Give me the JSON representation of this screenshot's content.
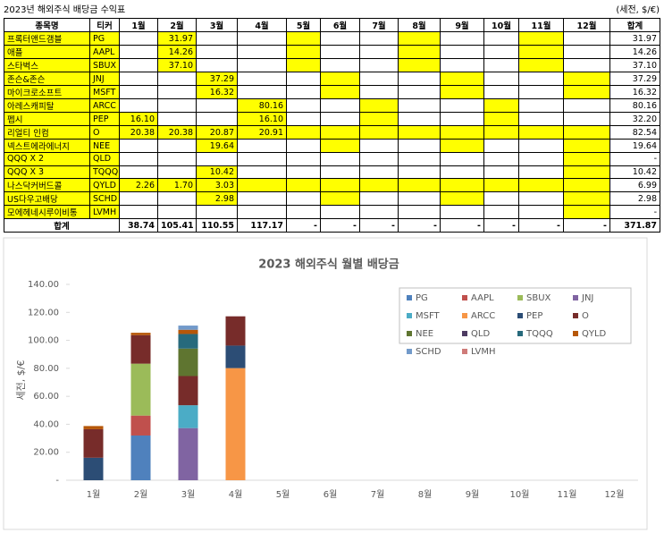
{
  "table": {
    "title": "2023년 해외주식 배당금 수익표",
    "unit": "(세전, $/€)",
    "header": [
      "종목명",
      "티커",
      "1월",
      "2월",
      "3월",
      "4월",
      "5월",
      "6월",
      "7월",
      "8월",
      "9월",
      "10월",
      "11월",
      "12월",
      "합계"
    ],
    "rows": [
      {
        "name": "프록터앤드갬블",
        "ticker": "PG",
        "months": [
          null,
          "31.97",
          null,
          null,
          null,
          null,
          null,
          null,
          null,
          null,
          null,
          null
        ],
        "total": "31.97",
        "highlight": [
          2,
          5,
          8,
          11
        ]
      },
      {
        "name": "애플",
        "ticker": "AAPL",
        "months": [
          null,
          "14.26",
          null,
          null,
          null,
          null,
          null,
          null,
          null,
          null,
          null,
          null
        ],
        "total": "14.26",
        "highlight": [
          2,
          5,
          8,
          11
        ]
      },
      {
        "name": "스타벅스",
        "ticker": "SBUX",
        "months": [
          null,
          "37.10",
          null,
          null,
          null,
          null,
          null,
          null,
          null,
          null,
          null,
          null
        ],
        "total": "37.10",
        "highlight": [
          2,
          5,
          8,
          11
        ]
      },
      {
        "name": "존슨&존슨",
        "ticker": "JNJ",
        "months": [
          null,
          null,
          "37.29",
          null,
          null,
          null,
          null,
          null,
          null,
          null,
          null,
          null
        ],
        "total": "37.29",
        "highlight": [
          3,
          6,
          9,
          12
        ]
      },
      {
        "name": "마이크로소프트",
        "ticker": "MSFT",
        "months": [
          null,
          null,
          "16.32",
          null,
          null,
          null,
          null,
          null,
          null,
          null,
          null,
          null
        ],
        "total": "16.32",
        "highlight": [
          3,
          6,
          9,
          12
        ]
      },
      {
        "name": "아레스캐피탈",
        "ticker": "ARCC",
        "months": [
          null,
          null,
          null,
          "80.16",
          null,
          null,
          null,
          null,
          null,
          null,
          null,
          null
        ],
        "total": "80.16",
        "highlight": [
          4,
          7,
          10
        ]
      },
      {
        "name": "펩시",
        "ticker": "PEP",
        "months": [
          "16.10",
          null,
          null,
          "16.10",
          null,
          null,
          null,
          null,
          null,
          null,
          null,
          null
        ],
        "total": "32.20",
        "highlight": [
          1,
          4,
          7,
          10
        ]
      },
      {
        "name": "리얼티 인컴",
        "ticker": "O",
        "months": [
          "20.38",
          "20.38",
          "20.87",
          "20.91",
          null,
          null,
          null,
          null,
          null,
          null,
          null,
          null
        ],
        "total": "82.54",
        "highlight": [
          1,
          2,
          3,
          4,
          5,
          6,
          7,
          8,
          9,
          10,
          11,
          12
        ]
      },
      {
        "name": "넥스트에라에너지",
        "ticker": "NEE",
        "months": [
          null,
          null,
          "19.64",
          null,
          null,
          null,
          null,
          null,
          null,
          null,
          null,
          null
        ],
        "total": "19.64",
        "highlight": [
          3,
          6,
          9,
          12
        ]
      },
      {
        "name": "QQQ X 2",
        "ticker": "QLD",
        "months": [
          null,
          null,
          null,
          null,
          null,
          null,
          null,
          null,
          null,
          null,
          null,
          null
        ],
        "total": "-",
        "highlight": [
          12
        ]
      },
      {
        "name": "QQQ X 3",
        "ticker": "TQQQ",
        "months": [
          null,
          null,
          "10.42",
          null,
          null,
          null,
          null,
          null,
          null,
          null,
          null,
          null
        ],
        "total": "10.42",
        "highlight": [
          3,
          12
        ]
      },
      {
        "name": "나스닥커버드콜",
        "ticker": "QYLD",
        "months": [
          "2.26",
          "1.70",
          "3.03",
          null,
          null,
          null,
          null,
          null,
          null,
          null,
          null,
          null
        ],
        "total": "6.99",
        "highlight": [
          1,
          2,
          3,
          4,
          5,
          6,
          7,
          8,
          9,
          10,
          11,
          12
        ]
      },
      {
        "name": "US다우고배당",
        "ticker": "SCHD",
        "months": [
          null,
          null,
          "2.98",
          null,
          null,
          null,
          null,
          null,
          null,
          null,
          null,
          null
        ],
        "total": "2.98",
        "highlight": [
          3,
          6,
          9,
          12
        ]
      },
      {
        "name": "모에헤네시루이비통",
        "ticker": "LVMH",
        "months": [
          null,
          null,
          null,
          null,
          null,
          null,
          null,
          null,
          null,
          null,
          null,
          null
        ],
        "total": "-",
        "highlight": [
          12
        ]
      }
    ],
    "total_row": {
      "label": "합계",
      "months": [
        "38.74",
        "105.41",
        "110.55",
        "117.17",
        "-",
        "-",
        "-",
        "-",
        "-",
        "-",
        "-",
        "-"
      ],
      "total": "371.87"
    }
  },
  "chart_data": {
    "type": "stacked_bar",
    "title": "2023 해외주식 월별 배당금",
    "ylabel": "세전, $/€",
    "categories": [
      "1월",
      "2월",
      "3월",
      "4월",
      "5월",
      "6월",
      "7월",
      "8월",
      "9월",
      "10월",
      "11월",
      "12월"
    ],
    "ylim": [
      0,
      140
    ],
    "yticks": [
      {
        "value": 0,
        "label": "-"
      },
      {
        "value": 20,
        "label": "20.00"
      },
      {
        "value": 40,
        "label": "40.00"
      },
      {
        "value": 60,
        "label": "60.00"
      },
      {
        "value": 80,
        "label": "80.00"
      },
      {
        "value": 100,
        "label": "100.00"
      },
      {
        "value": 120,
        "label": "120.00"
      },
      {
        "value": 140,
        "label": "140.00"
      }
    ],
    "grid": false,
    "legend": "top-right",
    "series": [
      {
        "name": "PG",
        "color": "#4f81bd",
        "values": [
          null,
          31.97,
          null,
          null,
          null,
          null,
          null,
          null,
          null,
          null,
          null,
          null
        ]
      },
      {
        "name": "AAPL",
        "color": "#c0504d",
        "values": [
          null,
          14.26,
          null,
          null,
          null,
          null,
          null,
          null,
          null,
          null,
          null,
          null
        ]
      },
      {
        "name": "SBUX",
        "color": "#9bbb59",
        "values": [
          null,
          37.1,
          null,
          null,
          null,
          null,
          null,
          null,
          null,
          null,
          null,
          null
        ]
      },
      {
        "name": "JNJ",
        "color": "#8064a2",
        "values": [
          null,
          null,
          37.29,
          null,
          null,
          null,
          null,
          null,
          null,
          null,
          null,
          null
        ]
      },
      {
        "name": "MSFT",
        "color": "#4bacc6",
        "values": [
          null,
          null,
          16.32,
          null,
          null,
          null,
          null,
          null,
          null,
          null,
          null,
          null
        ]
      },
      {
        "name": "ARCC",
        "color": "#f79646",
        "values": [
          null,
          null,
          null,
          80.16,
          null,
          null,
          null,
          null,
          null,
          null,
          null,
          null
        ]
      },
      {
        "name": "PEP",
        "color": "#2c4d75",
        "values": [
          16.1,
          null,
          null,
          16.1,
          null,
          null,
          null,
          null,
          null,
          null,
          null,
          null
        ]
      },
      {
        "name": "O",
        "color": "#772c2a",
        "values": [
          20.38,
          20.38,
          20.87,
          20.91,
          null,
          null,
          null,
          null,
          null,
          null,
          null,
          null
        ]
      },
      {
        "name": "NEE",
        "color": "#5f7530",
        "values": [
          null,
          null,
          19.64,
          null,
          null,
          null,
          null,
          null,
          null,
          null,
          null,
          null
        ]
      },
      {
        "name": "QLD",
        "color": "#4d3b62",
        "values": [
          null,
          null,
          null,
          null,
          null,
          null,
          null,
          null,
          null,
          null,
          null,
          null
        ]
      },
      {
        "name": "TQQQ",
        "color": "#276a7c",
        "values": [
          null,
          null,
          10.42,
          null,
          null,
          null,
          null,
          null,
          null,
          null,
          null,
          null
        ]
      },
      {
        "name": "QYLD",
        "color": "#b65708",
        "values": [
          2.26,
          1.7,
          3.03,
          null,
          null,
          null,
          null,
          null,
          null,
          null,
          null,
          null
        ]
      },
      {
        "name": "SCHD",
        "color": "#729aca",
        "values": [
          null,
          null,
          2.98,
          null,
          null,
          null,
          null,
          null,
          null,
          null,
          null,
          null
        ]
      },
      {
        "name": "LVMH",
        "color": "#cf7b79",
        "values": [
          null,
          null,
          null,
          null,
          null,
          null,
          null,
          null,
          null,
          null,
          null,
          null
        ]
      }
    ]
  }
}
